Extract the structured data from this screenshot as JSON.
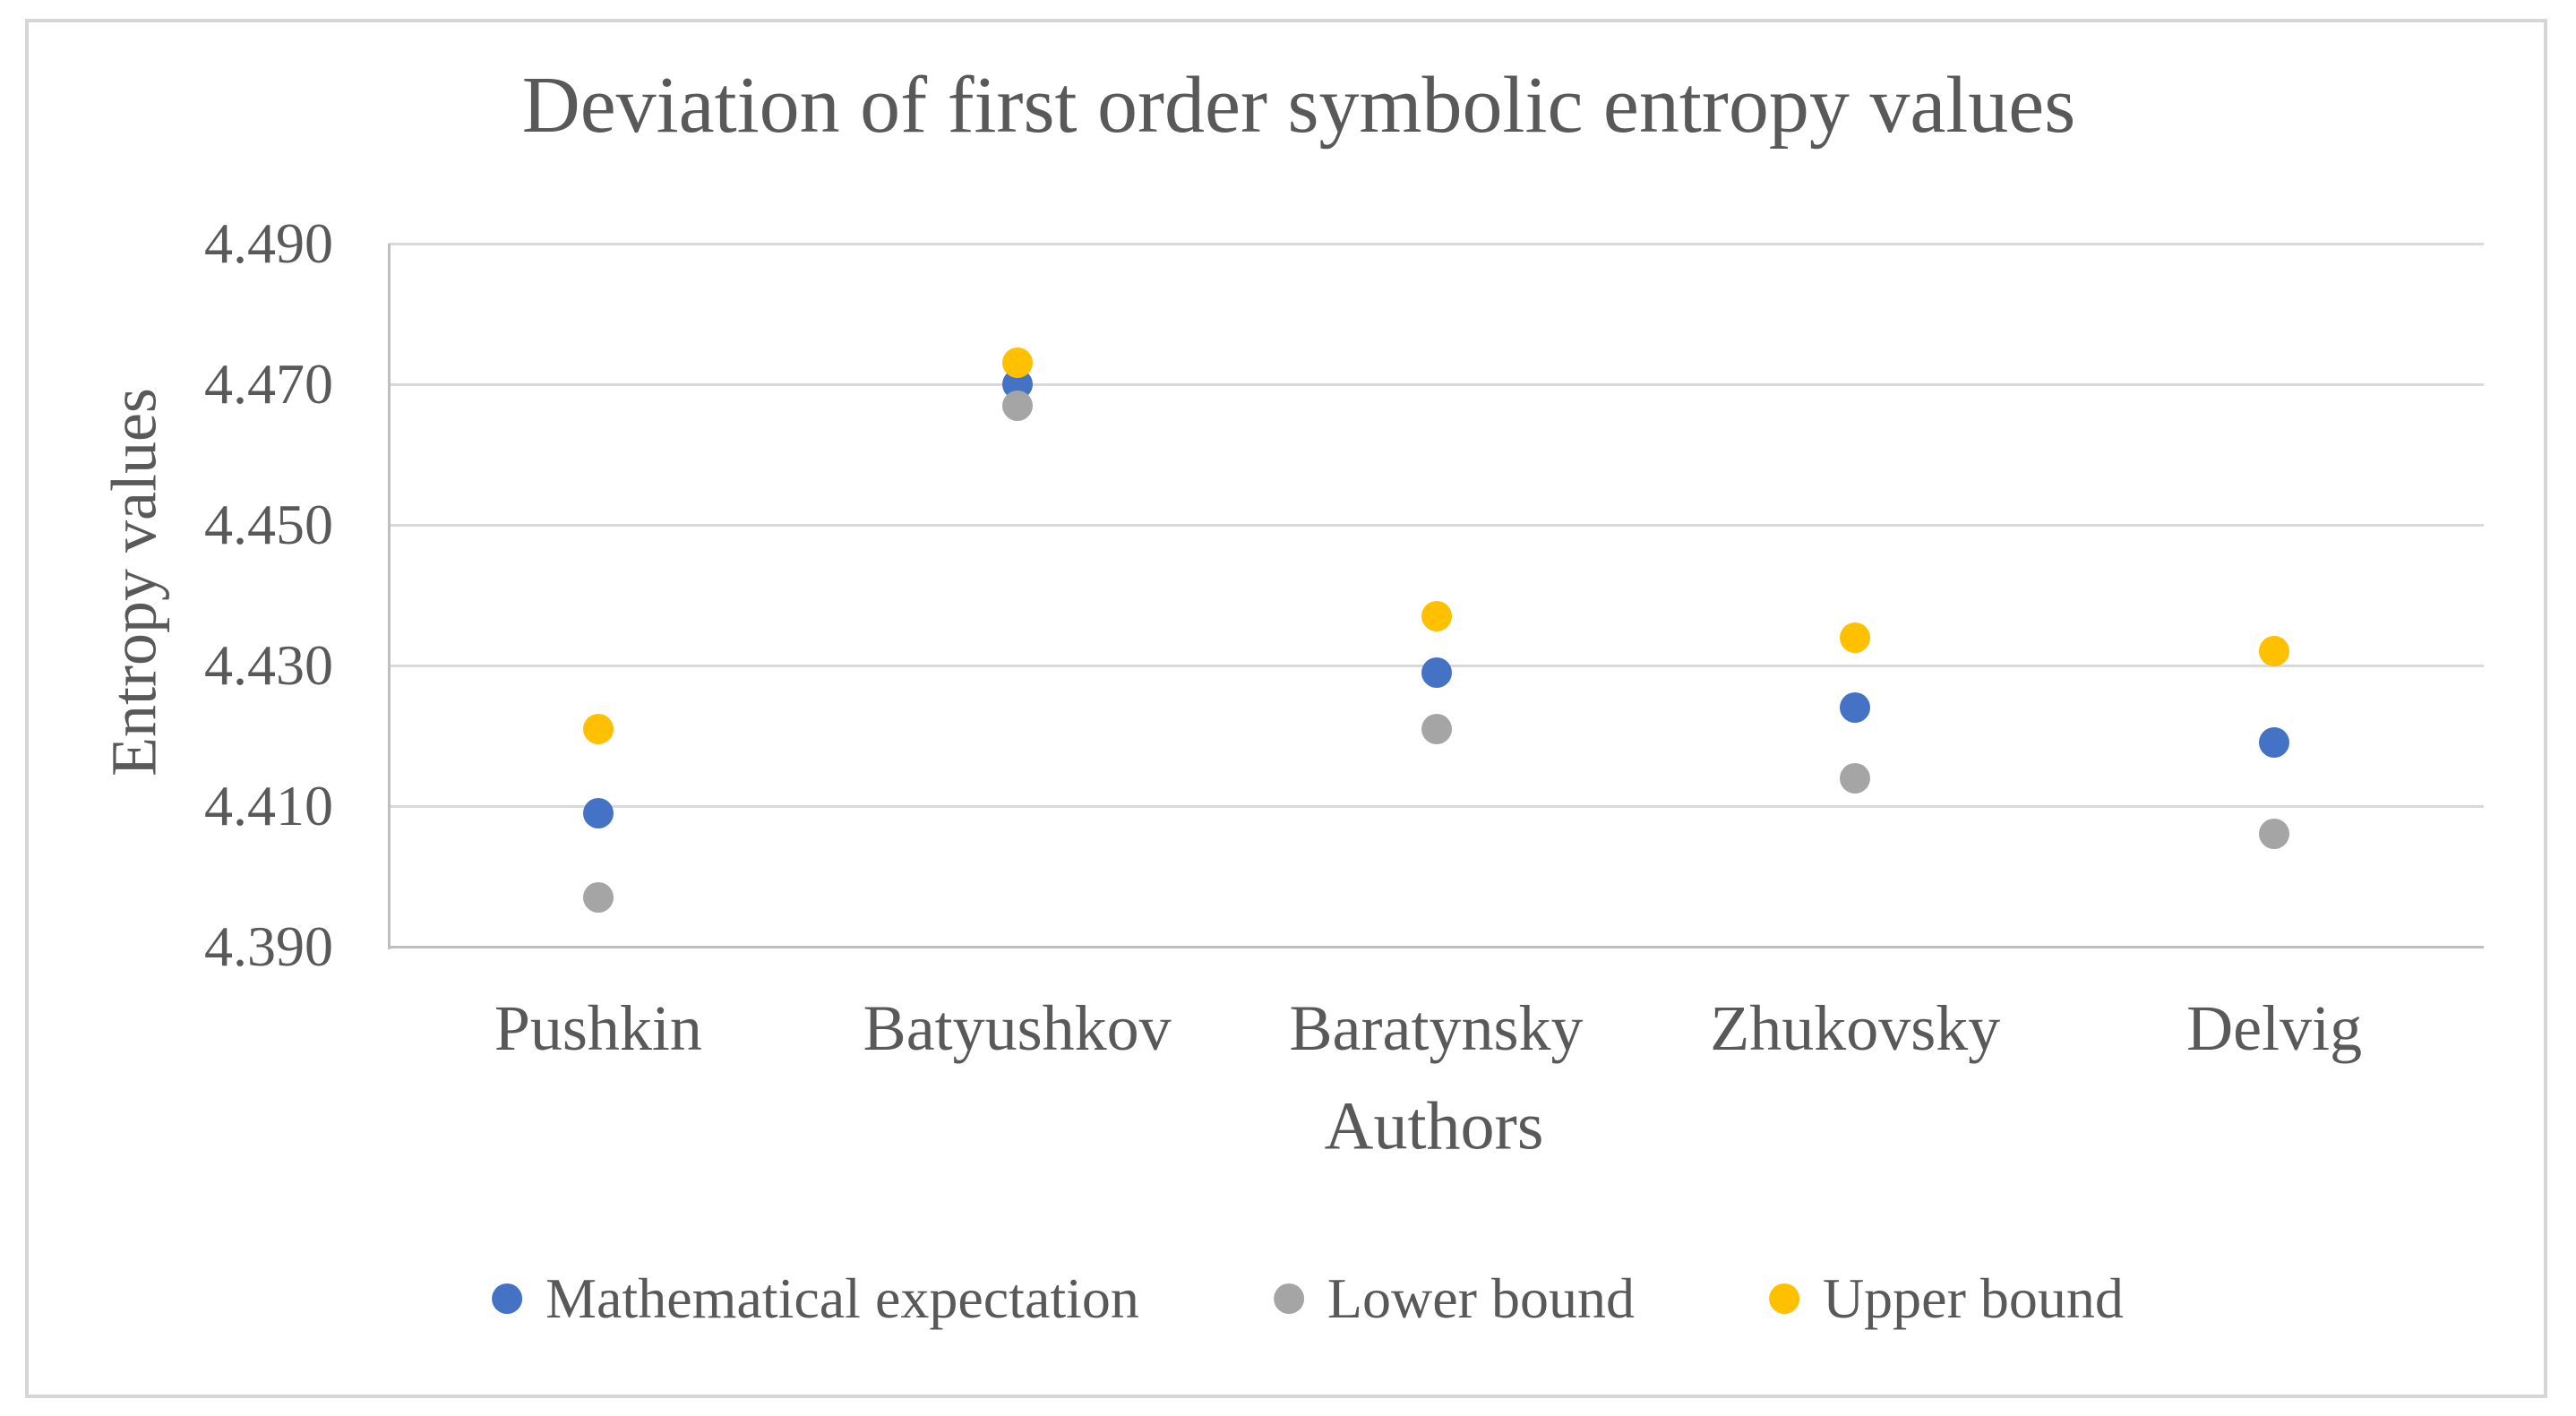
{
  "chart_data": {
    "type": "scatter",
    "title": "Deviation of first order symbolic entropy values",
    "xlabel": "Authors",
    "ylabel": "Entropy values",
    "categories": [
      "Pushkin",
      "Batyushkov",
      "Baratynsky",
      "Zhukovsky",
      "Delvig"
    ],
    "series": [
      {
        "name": "Mathematical expectation",
        "color": "#4472C4",
        "values": [
          4.409,
          4.47,
          4.429,
          4.424,
          4.419
        ]
      },
      {
        "name": "Lower bound",
        "color": "#A5A5A5",
        "values": [
          4.397,
          4.467,
          4.421,
          4.414,
          4.406
        ]
      },
      {
        "name": "Upper bound",
        "color": "#FFC000",
        "values": [
          4.421,
          4.473,
          4.437,
          4.434,
          4.432
        ]
      }
    ],
    "ylim": [
      4.39,
      4.49
    ],
    "ytick_step": 0.02,
    "ytick_labels": [
      "4.490",
      "4.470",
      "4.450",
      "4.430",
      "4.410",
      "4.390"
    ],
    "grid": true,
    "legend_position": "bottom"
  },
  "style_colors": {
    "text": "#595959",
    "gridline": "#D9D9D9",
    "axis_line": "#BFBFBF",
    "figure_border": "#D6D6D6"
  }
}
